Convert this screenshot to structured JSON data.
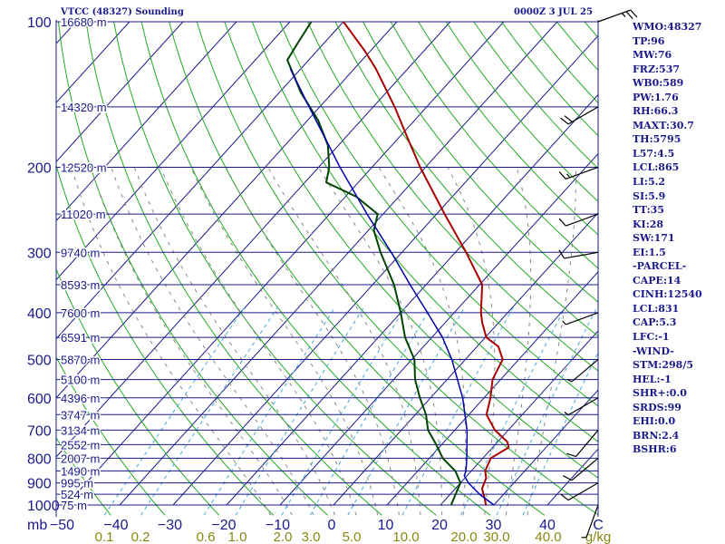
{
  "header": {
    "station": "VTCC (48327) Sounding",
    "datetime": "0000Z  3 JUL 25"
  },
  "indices": [
    "WMO:48327",
    "TP:96",
    "MW:76",
    "FRZ:537",
    "WB0:589",
    "PW:1.76",
    "RH:66.3",
    "MAXT:30.7",
    "TH:5795",
    "L57:4.5",
    "LCL:865",
    "LI:5.2",
    "SI:5.9",
    "TT:35",
    "KI:28",
    "SW:171",
    "EI:1.5",
    "-PARCEL-",
    "CAPE:14",
    "CINH:12540",
    "LCL:831",
    "CAP:5.3",
    "LFC:-1",
    "-WIND-",
    "STM:298/5",
    "HEL:-1",
    "SHR+:0.0",
    "SRDS:99",
    "EHI:0.0",
    "BRN:2.4",
    "BSHR:6"
  ],
  "colors": {
    "isobar": "#1a1a8c",
    "isotherm": "#1a1a8c",
    "dry_adiabat": "#22aa22",
    "moist_adiabat": "#888888",
    "mixing_ratio": "#44aadd",
    "temperature": "#aa0000",
    "dewpoint": "#004400",
    "parcel": "#0000aa",
    "axis_text": "#1a1a8c",
    "mixing_text": "#888811"
  },
  "chart_data": {
    "type": "line",
    "title": "VTCC (48327) Sounding",
    "xlabel": "C",
    "ylabel": "mb",
    "y_scale": "log",
    "ylim": [
      1000,
      100
    ],
    "xlim": [
      -50,
      50
    ],
    "pressure_ticks": [
      100,
      200,
      300,
      400,
      500,
      600,
      700,
      800,
      900,
      1000
    ],
    "temp_ticks": [
      "−50",
      "−40",
      "−30",
      "−20",
      "−10",
      "0",
      "10",
      "20",
      "30",
      "40"
    ],
    "unit_label": "mb",
    "celsius_label": "C",
    "mixing_ratio_ticks": [
      "0.1",
      "0.2",
      "0.6",
      "1.0",
      "2.0",
      "3.0",
      "5.0",
      "10.0",
      "20.0",
      "30.0",
      "40.0"
    ],
    "mixing_unit": "g/kg",
    "height_labels": [
      {
        "p": 100,
        "label": "16680 m"
      },
      {
        "p": 150,
        "label": "14320 m"
      },
      {
        "p": 200,
        "label": "12520 m"
      },
      {
        "p": 250,
        "label": "11020 m"
      },
      {
        "p": 300,
        "label": "9740 m"
      },
      {
        "p": 350,
        "label": "8593 m"
      },
      {
        "p": 400,
        "label": "7600 m"
      },
      {
        "p": 450,
        "label": "6591 m"
      },
      {
        "p": 500,
        "label": "5870 m"
      },
      {
        "p": 550,
        "label": "5100 m"
      },
      {
        "p": 600,
        "label": "4396 m"
      },
      {
        "p": 650,
        "label": "3747 m"
      },
      {
        "p": 700,
        "label": "3134 m"
      },
      {
        "p": 750,
        "label": "2552 m"
      },
      {
        "p": 800,
        "label": "2007 m"
      },
      {
        "p": 850,
        "label": "1490 m"
      },
      {
        "p": 900,
        "label": "995 m"
      },
      {
        "p": 950,
        "label": "524 m"
      },
      {
        "p": 1000,
        "label": "75 m"
      }
    ],
    "series": [
      {
        "key": "temperature",
        "points": [
          [
            1000,
            28.5
          ],
          [
            970,
            27.2
          ],
          [
            925,
            25.0
          ],
          [
            880,
            24.0
          ],
          [
            850,
            22.6
          ],
          [
            800,
            21.5
          ],
          [
            760,
            23.0
          ],
          [
            740,
            21.8
          ],
          [
            700,
            17.5
          ],
          [
            650,
            13.3
          ],
          [
            600,
            11.2
          ],
          [
            550,
            8.5
          ],
          [
            500,
            7.0
          ],
          [
            470,
            4.0
          ],
          [
            450,
            0.2
          ],
          [
            420,
            -3.0
          ],
          [
            400,
            -5.0
          ],
          [
            350,
            -9.5
          ],
          [
            300,
            -18.0
          ],
          [
            250,
            -28.5
          ],
          [
            200,
            -41.0
          ],
          [
            175,
            -48.0
          ],
          [
            150,
            -56.0
          ],
          [
            125,
            -66.0
          ],
          [
            115,
            -71.0
          ],
          [
            100,
            -80.0
          ]
        ]
      },
      {
        "key": "dewpoint",
        "points": [
          [
            1000,
            22.0
          ],
          [
            950,
            21.0
          ],
          [
            900,
            20.0
          ],
          [
            850,
            17.0
          ],
          [
            800,
            12.5
          ],
          [
            750,
            9.0
          ],
          [
            700,
            5.0
          ],
          [
            650,
            2.0
          ],
          [
            600,
            -2.0
          ],
          [
            550,
            -6.0
          ],
          [
            500,
            -9.5
          ],
          [
            450,
            -15.0
          ],
          [
            400,
            -20.0
          ],
          [
            350,
            -26.0
          ],
          [
            300,
            -34.0
          ],
          [
            270,
            -39.0
          ],
          [
            250,
            -41.0
          ],
          [
            230,
            -48.0
          ],
          [
            215,
            -56.0
          ],
          [
            200,
            -58.0
          ],
          [
            180,
            -62.0
          ],
          [
            160,
            -68.0
          ],
          [
            140,
            -76.0
          ],
          [
            120,
            -84.0
          ],
          [
            110,
            -85.0
          ],
          [
            100,
            -86.0
          ]
        ]
      },
      {
        "key": "parcel",
        "points": [
          [
            1000,
            30.0
          ],
          [
            950,
            25.5
          ],
          [
            900,
            21.5
          ],
          [
            870,
            19.5
          ],
          [
            850,
            19.0
          ],
          [
            800,
            17.0
          ],
          [
            700,
            12.3
          ],
          [
            600,
            6.0
          ],
          [
            500,
            -2.5
          ],
          [
            450,
            -8.0
          ],
          [
            400,
            -15.0
          ],
          [
            350,
            -23.0
          ],
          [
            300,
            -32.0
          ],
          [
            250,
            -43.0
          ],
          [
            200,
            -56.0
          ],
          [
            150,
            -72.0
          ],
          [
            125,
            -82.0
          ]
        ]
      }
    ],
    "wind_barbs": [
      {
        "p": 100,
        "dir": 70,
        "spd": 25
      },
      {
        "p": 150,
        "dir": 240,
        "spd": 20
      },
      {
        "p": 200,
        "dir": 250,
        "spd": 15
      },
      {
        "p": 250,
        "dir": 250,
        "spd": 10
      },
      {
        "p": 300,
        "dir": 260,
        "spd": 10
      },
      {
        "p": 400,
        "dir": 250,
        "spd": 5
      },
      {
        "p": 500,
        "dir": 230,
        "spd": 5
      },
      {
        "p": 600,
        "dir": 240,
        "spd": 5
      },
      {
        "p": 700,
        "dir": 220,
        "spd": 10
      },
      {
        "p": 800,
        "dir": 230,
        "spd": 10
      },
      {
        "p": 900,
        "dir": 240,
        "spd": 10
      },
      {
        "p": 1000,
        "dir": 200,
        "spd": 5
      }
    ]
  }
}
